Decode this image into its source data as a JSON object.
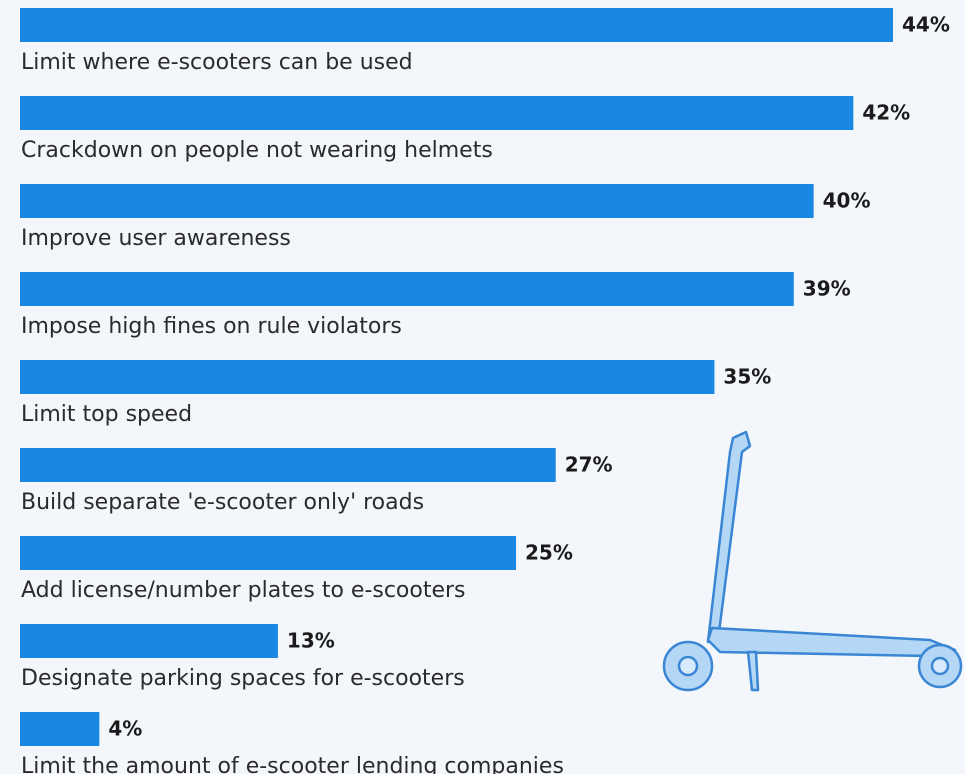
{
  "chart_data": {
    "type": "bar",
    "categories": [
      "Limit where e-scooters can be used",
      "Crackdown on people not wearing helmets",
      "Improve user awareness",
      "Impose high fines on rule violators",
      "Limit top speed",
      "Build separate 'e-scooter only' roads",
      "Add license/number plates to e-scooters",
      "Designate parking spaces for e-scooters",
      "Limit the amount of e-scooter lending companies"
    ],
    "values": [
      44,
      42,
      40,
      39,
      35,
      27,
      25,
      13,
      4
    ],
    "value_labels": [
      "44%",
      "42%",
      "40%",
      "39%",
      "35%",
      "27%",
      "25%",
      "13%",
      "4%"
    ],
    "color": "#1a87e3"
  }
}
